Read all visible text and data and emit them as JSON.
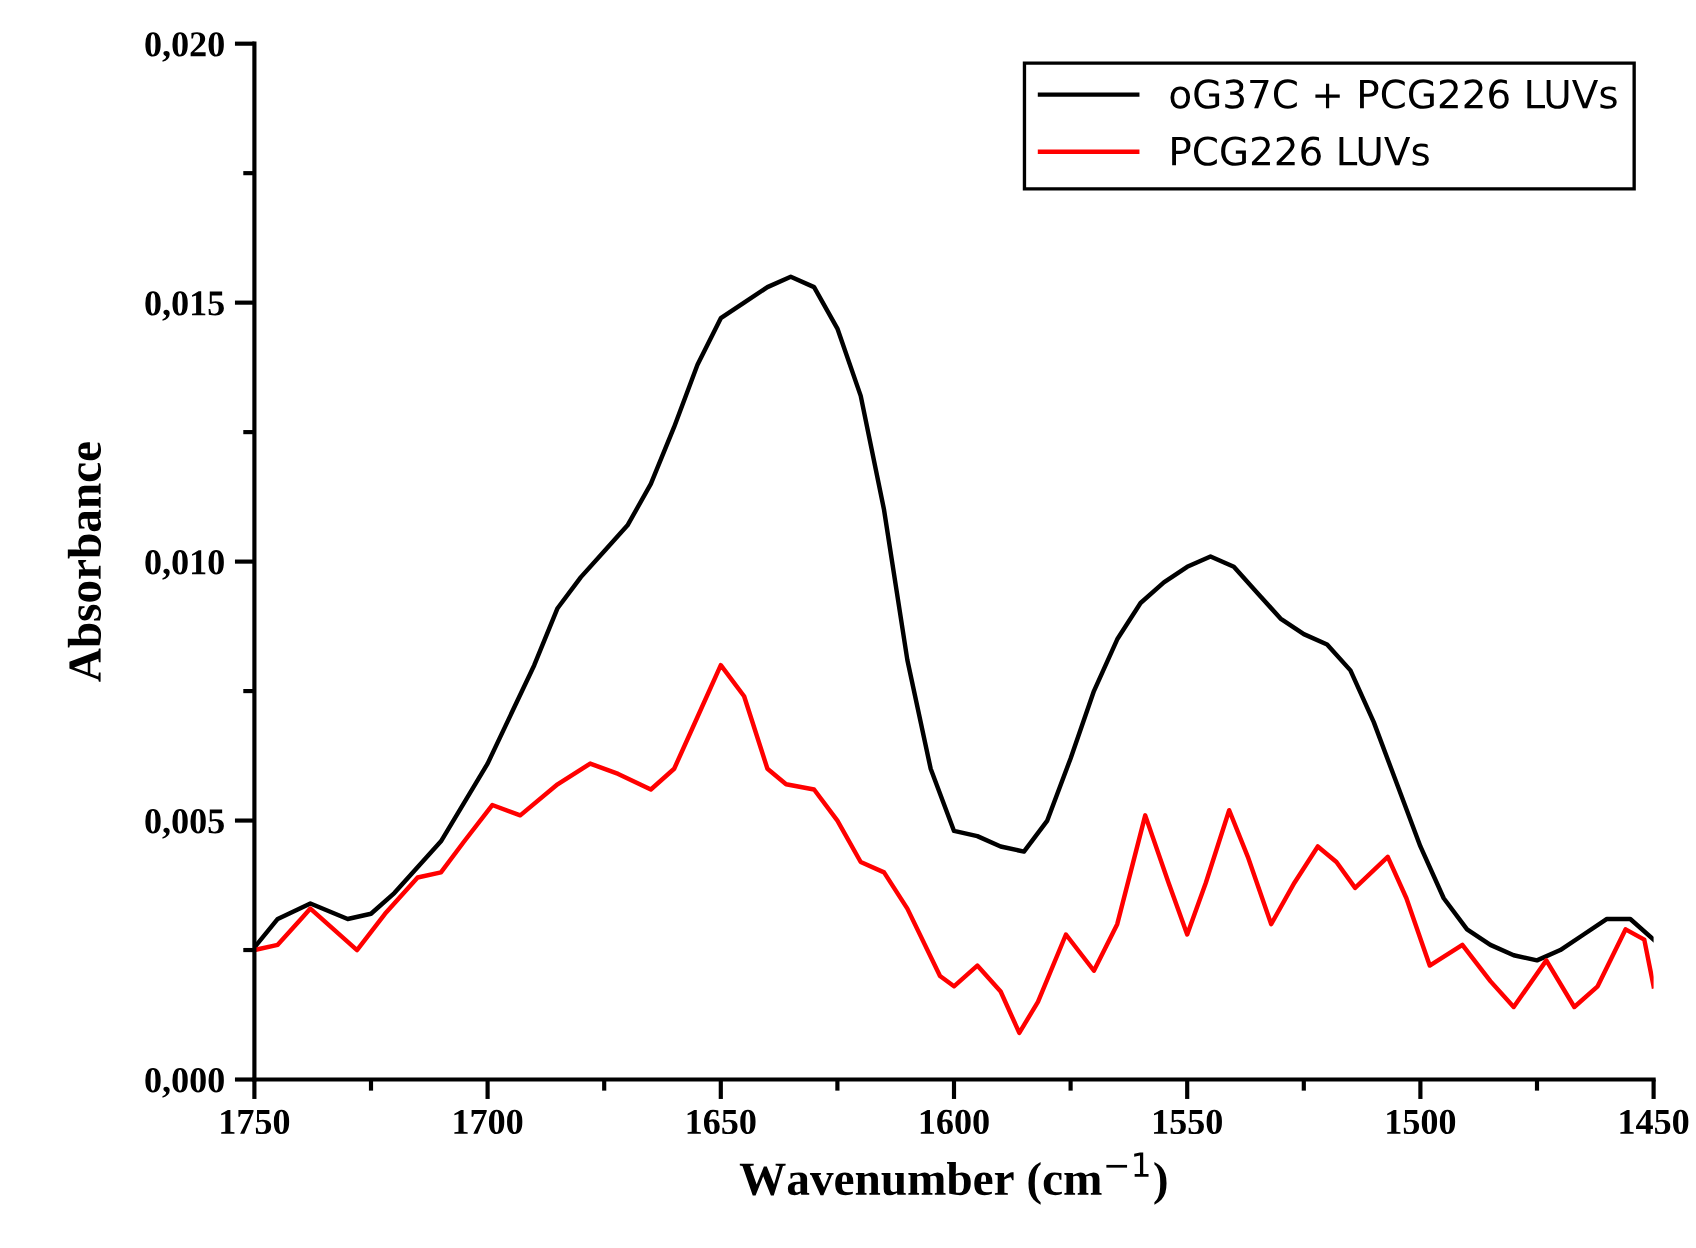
{
  "chart_data": {
    "type": "line",
    "xlabel": "Wavenumber (cm$^{−1}$)",
    "ylabel": "Absorbance",
    "xlim": [
      1750,
      1450
    ],
    "ylim": [
      0,
      0.02
    ],
    "xticks": [
      1750,
      1700,
      1650,
      1600,
      1550,
      1500,
      1450
    ],
    "yticks": [
      {
        "value": 0,
        "label": "0,000"
      },
      {
        "value": 0.005,
        "label": "0,005"
      },
      {
        "value": 0.01,
        "label": "0,010"
      },
      {
        "value": 0.015,
        "label": "0,015"
      },
      {
        "value": 0.02,
        "label": "0,020"
      }
    ],
    "grid": false,
    "legend": "top right",
    "marker": "none",
    "line_style": "solid",
    "series": [
      {
        "name": "oG37C + PCG226 LUVs",
        "color": "#000000",
        "x": [
          1750,
          1745,
          1738,
          1730,
          1725,
          1720,
          1710,
          1700,
          1690,
          1685,
          1680,
          1675,
          1670,
          1665,
          1660,
          1655,
          1650,
          1645,
          1640,
          1635,
          1630,
          1625,
          1620,
          1615,
          1610,
          1605,
          1600,
          1595,
          1590,
          1585,
          1580,
          1575,
          1570,
          1565,
          1560,
          1555,
          1550,
          1545,
          1540,
          1535,
          1530,
          1525,
          1520,
          1515,
          1510,
          1505,
          1500,
          1495,
          1490,
          1485,
          1480,
          1475,
          1470,
          1465,
          1460,
          1455,
          1450
        ],
        "values": [
          0.00255,
          0.0031,
          0.0034,
          0.0031,
          0.0032,
          0.0036,
          0.0046,
          0.0061,
          0.008,
          0.0091,
          0.0097,
          0.0102,
          0.0107,
          0.0115,
          0.0126,
          0.0138,
          0.0147,
          0.015,
          0.0153,
          0.0155,
          0.0153,
          0.0145,
          0.0132,
          0.011,
          0.0081,
          0.006,
          0.0048,
          0.0047,
          0.0045,
          0.0044,
          0.005,
          0.0062,
          0.0075,
          0.0085,
          0.0092,
          0.0096,
          0.0099,
          0.0101,
          0.0099,
          0.0094,
          0.0089,
          0.0086,
          0.0084,
          0.0079,
          0.0069,
          0.0057,
          0.0045,
          0.0035,
          0.0029,
          0.0026,
          0.0024,
          0.0023,
          0.0025,
          0.0028,
          0.0031,
          0.0031,
          0.0027
        ]
      },
      {
        "name": "PCG226 LUVs",
        "color": "#ff0000",
        "x": [
          1750,
          1745,
          1740,
          1738,
          1733,
          1728,
          1722,
          1715,
          1710,
          1705,
          1699,
          1693,
          1685,
          1678,
          1672,
          1665,
          1660,
          1655,
          1650,
          1645,
          1640,
          1636,
          1630,
          1625,
          1620,
          1615,
          1610,
          1603,
          1600,
          1595,
          1590,
          1586,
          1582,
          1576,
          1570,
          1565,
          1559,
          1554,
          1550,
          1546,
          1541,
          1537,
          1532,
          1527,
          1522,
          1518,
          1514,
          1507,
          1503,
          1498,
          1491,
          1485,
          1480,
          1473,
          1467,
          1462,
          1456,
          1452,
          1450
        ],
        "values": [
          0.0025,
          0.0026,
          0.0031,
          0.0033,
          0.0029,
          0.0025,
          0.0032,
          0.0039,
          0.004,
          0.0046,
          0.0053,
          0.0051,
          0.0057,
          0.0061,
          0.0059,
          0.0056,
          0.006,
          0.007,
          0.008,
          0.0074,
          0.006,
          0.0057,
          0.0056,
          0.005,
          0.0042,
          0.004,
          0.0033,
          0.002,
          0.0018,
          0.0022,
          0.0017,
          0.0009,
          0.0015,
          0.0028,
          0.0021,
          0.003,
          0.0051,
          0.0038,
          0.0028,
          0.0038,
          0.0052,
          0.0043,
          0.003,
          0.0038,
          0.0045,
          0.0042,
          0.0037,
          0.0043,
          0.0035,
          0.0022,
          0.0026,
          0.0019,
          0.0014,
          0.0023,
          0.0014,
          0.0018,
          0.0029,
          0.0027,
          0.0018
        ]
      }
    ]
  }
}
